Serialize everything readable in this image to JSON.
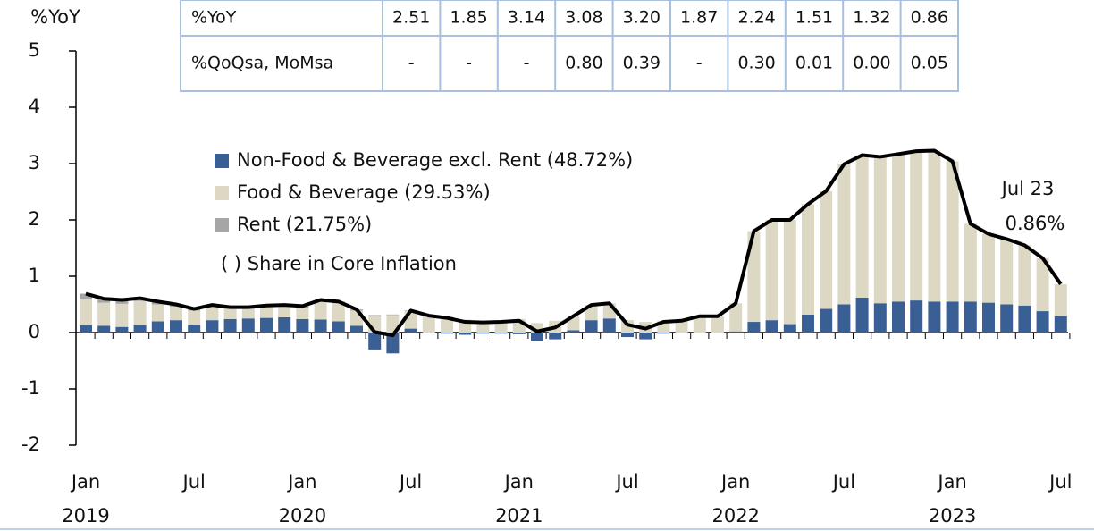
{
  "chart_data": {
    "type": "bar",
    "ylabel": "%YoY",
    "ylim": [
      -2,
      5
    ],
    "yticks": [
      -2,
      -1,
      0,
      1,
      2,
      3,
      4,
      5
    ],
    "note": "( ) Share in Core Inflation",
    "annotations": [
      "Jul 23",
      "0.86%"
    ],
    "categories": [
      "Jan 2019",
      null,
      null,
      null,
      null,
      null,
      "Jul",
      null,
      null,
      null,
      null,
      null,
      "Jan 2020",
      null,
      null,
      null,
      null,
      null,
      "Jul",
      null,
      null,
      null,
      null,
      null,
      "Jan 2021",
      null,
      null,
      null,
      null,
      null,
      "Jul",
      null,
      null,
      null,
      null,
      null,
      "Jan 2022",
      null,
      null,
      null,
      null,
      null,
      "Jul",
      null,
      null,
      null,
      null,
      null,
      "Jan 2023",
      null,
      null,
      null,
      null,
      null,
      "Jul"
    ],
    "series": [
      {
        "name": "Non-Food & Beverage excl. Rent (48.72%)",
        "color": "#3a5f94",
        "values": [
          0.13,
          0.12,
          0.1,
          0.13,
          0.2,
          0.22,
          0.13,
          0.22,
          0.24,
          0.25,
          0.26,
          0.27,
          0.24,
          0.23,
          0.2,
          0.12,
          -0.3,
          -0.37,
          0.07,
          0.0,
          -0.02,
          -0.04,
          -0.02,
          -0.02,
          -0.03,
          -0.15,
          -0.12,
          0.04,
          0.22,
          0.25,
          -0.08,
          -0.12,
          -0.02,
          0.0,
          0.0,
          0.0,
          0.02,
          0.19,
          0.22,
          0.15,
          0.32,
          0.42,
          0.5,
          0.62,
          0.52,
          0.55,
          0.57,
          0.55,
          0.55,
          0.55,
          0.53,
          0.5,
          0.48,
          0.38,
          0.29
        ]
      },
      {
        "name": "Food & Beverage (29.53%)",
        "color": "#ddd8c4",
        "values": [
          0.46,
          0.41,
          0.41,
          0.43,
          0.3,
          0.24,
          0.26,
          0.24,
          0.18,
          0.17,
          0.19,
          0.19,
          0.2,
          0.32,
          0.32,
          0.27,
          0.29,
          0.31,
          0.31,
          0.3,
          0.28,
          0.23,
          0.2,
          0.21,
          0.24,
          0.17,
          0.21,
          0.25,
          0.27,
          0.27,
          0.22,
          0.19,
          0.21,
          0.21,
          0.29,
          0.29,
          0.5,
          1.61,
          1.78,
          1.85,
          1.96,
          2.09,
          2.49,
          2.53,
          2.6,
          2.62,
          2.65,
          2.68,
          2.49,
          1.38,
          1.22,
          1.16,
          1.07,
          0.94,
          0.57
        ]
      },
      {
        "name": "Rent (21.75%)",
        "color": "#a6a6a6",
        "values": [
          0.1,
          0.07,
          0.07,
          0.05,
          0.05,
          0.04,
          0.03,
          0.03,
          0.03,
          0.03,
          0.03,
          0.03,
          0.03,
          0.03,
          0.03,
          0.02,
          0.02,
          0.01,
          0.01,
          0,
          0,
          0,
          0,
          0,
          0,
          0,
          0,
          0,
          0,
          0,
          0,
          0,
          0,
          0,
          0,
          0,
          0,
          0,
          0,
          0,
          0,
          0,
          0,
          0,
          0,
          0,
          0,
          0,
          0,
          0,
          0,
          0,
          0,
          0,
          0
        ]
      },
      {
        "type": "line",
        "color": "#000000",
        "values": [
          0.69,
          0.6,
          0.58,
          0.61,
          0.55,
          0.5,
          0.42,
          0.49,
          0.45,
          0.45,
          0.48,
          0.49,
          0.47,
          0.58,
          0.55,
          0.41,
          0.01,
          -0.05,
          0.39,
          0.3,
          0.26,
          0.19,
          0.18,
          0.19,
          0.21,
          0.02,
          0.09,
          0.29,
          0.49,
          0.52,
          0.14,
          0.07,
          0.19,
          0.21,
          0.29,
          0.29,
          0.52,
          1.8,
          2.0,
          2.0,
          2.28,
          2.51,
          2.99,
          3.15,
          3.12,
          3.17,
          3.22,
          3.23,
          3.04,
          1.93,
          1.75,
          1.66,
          1.55,
          1.32,
          0.86
        ]
      }
    ]
  },
  "table": {
    "rows": [
      [
        "%YoY",
        "2.51",
        "1.85",
        "3.14",
        "3.08",
        "3.20",
        "1.87",
        "2.24",
        "1.51",
        "1.32",
        "0.86"
      ],
      [
        "%QoQsa, MoMsa",
        "-",
        "-",
        "-",
        "0.80",
        "0.39",
        "-",
        "0.30",
        "0.01",
        "0.00",
        "0.05"
      ]
    ]
  }
}
